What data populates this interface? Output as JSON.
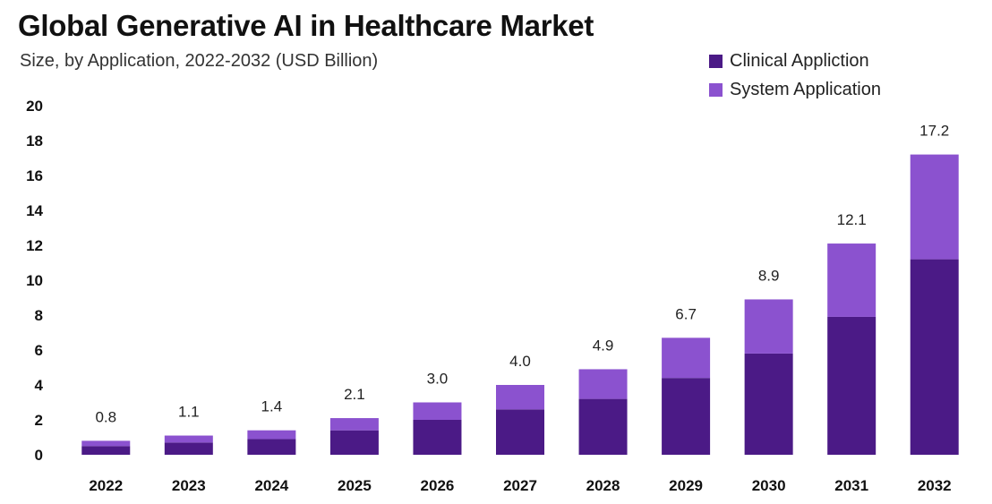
{
  "chart_data": {
    "type": "bar",
    "stacked": true,
    "title": "Global Generative AI in Healthcare Market",
    "subtitle": "Size, by Application, 2022-2032 (USD Billion)",
    "categories": [
      "2022",
      "2023",
      "2024",
      "2025",
      "2026",
      "2027",
      "2028",
      "2029",
      "2030",
      "2031",
      "2032"
    ],
    "series": [
      {
        "name": "Clinical Appliction",
        "color": "#4b1a86",
        "values": [
          0.5,
          0.7,
          0.9,
          1.4,
          2.0,
          2.6,
          3.2,
          4.4,
          5.8,
          7.9,
          11.2
        ]
      },
      {
        "name": "System Application",
        "color": "#8b52cf",
        "values": [
          0.3,
          0.4,
          0.5,
          0.7,
          1.0,
          1.4,
          1.7,
          2.3,
          3.1,
          4.2,
          6.0
        ]
      }
    ],
    "totals": [
      0.8,
      1.1,
      1.4,
      2.1,
      3.0,
      4.0,
      4.9,
      6.7,
      8.9,
      12.1,
      17.2
    ],
    "total_labels": [
      "0.8",
      "1.1",
      "1.4",
      "2.1",
      "3.0",
      "4.0",
      "4.9",
      "6.7",
      "8.9",
      "12.1",
      "17.2"
    ],
    "yticks": [
      "0",
      "2",
      "4",
      "6",
      "8",
      "10",
      "12",
      "14",
      "16",
      "18",
      "20"
    ],
    "ylim": [
      0,
      20
    ],
    "xlabel": "",
    "ylabel": "",
    "legend_position": "top-right"
  }
}
